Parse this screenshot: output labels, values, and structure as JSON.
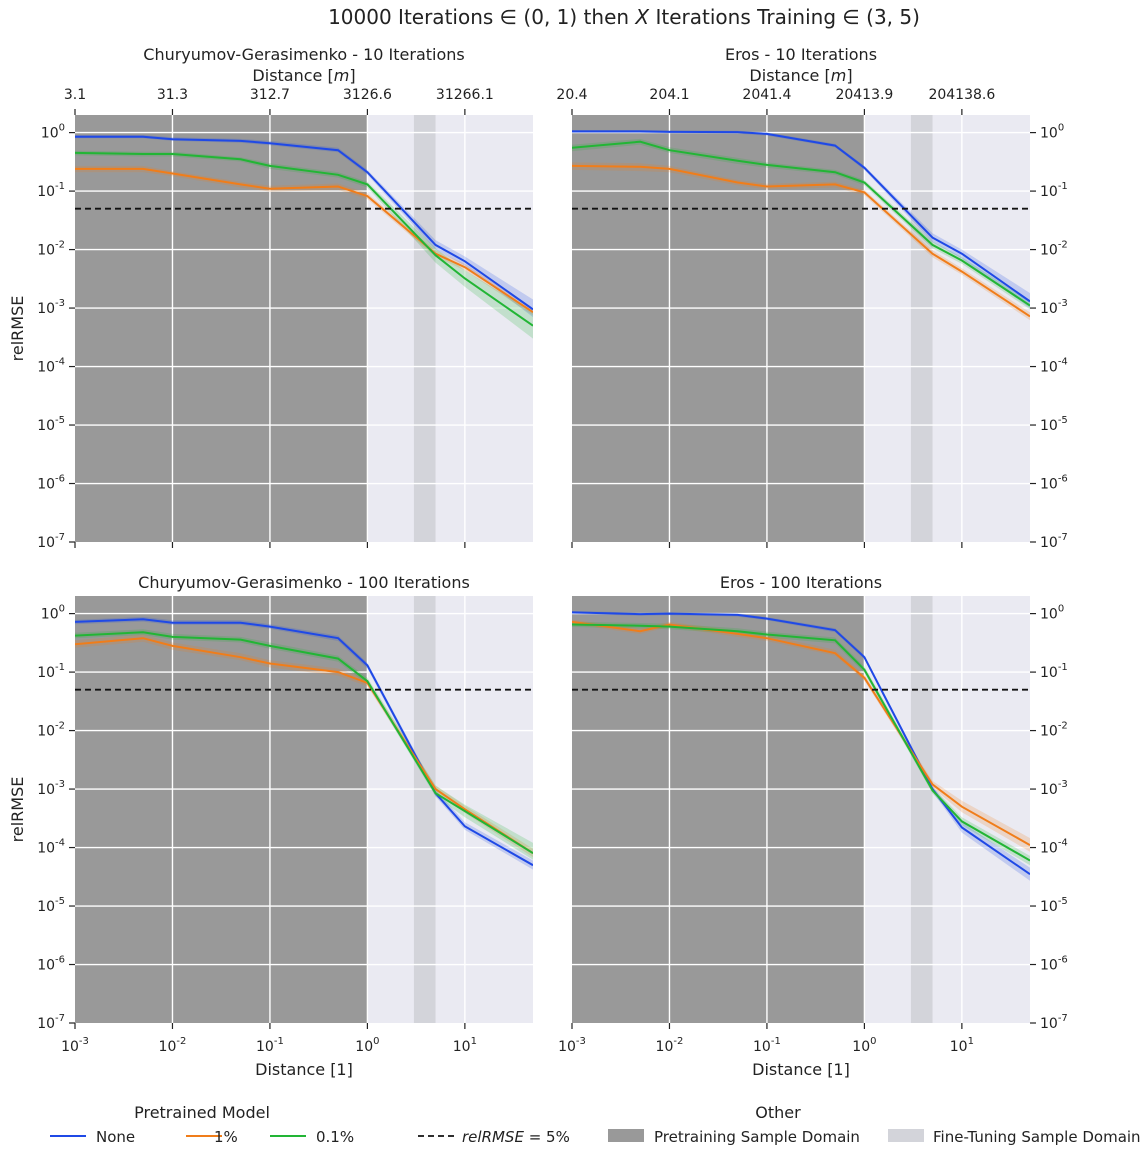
{
  "figure": {
    "title": "10000 Iterations ∈ (0, 1) then X Iterations Training ∈ (3, 5)"
  },
  "colors": {
    "none": "#1f49e6",
    "one_pct": "#f07d1a",
    "point_one_pct": "#22b535",
    "threshold": "#111111",
    "pretraining_domain": "#999999",
    "finetuning_domain": "#d3d4da",
    "plot_background": "#eaeaf2",
    "grid": "#ffffff"
  },
  "legend": {
    "left_title": "Pretrained Model",
    "right_title": "Other",
    "items": [
      {
        "label": "None",
        "kind": "line",
        "color_key": "none"
      },
      {
        "label": "1%",
        "kind": "line",
        "color_key": "one_pct"
      },
      {
        "label": "0.1%",
        "kind": "line",
        "color_key": "point_one_pct"
      },
      {
        "label": "relRMSE = 5%",
        "kind": "dashed",
        "color_key": "threshold"
      },
      {
        "label": "Pretraining Sample Domain",
        "kind": "patch",
        "color_key": "pretraining_domain"
      },
      {
        "label": "Fine-Tuning Sample Domain",
        "kind": "patch",
        "color_key": "finetuning_domain"
      }
    ]
  },
  "chart_data": [
    {
      "type": "line",
      "title": "Churyumov-Gerasimenko - 10 Iterations",
      "secondary_xlabel": "Distance [m]",
      "secondary_ticks": [
        "3.1",
        "31.3",
        "312.7",
        "3126.6",
        "31266.1"
      ],
      "xlabel": "",
      "ylabel": "relRMSE",
      "xscale": "log",
      "yscale": "log",
      "xlim": [
        0.001,
        50
      ],
      "ylim": [
        1e-07,
        2
      ],
      "pretraining_domain": [
        0.001,
        1
      ],
      "finetuning_domain": [
        3,
        5
      ],
      "threshold": 0.05,
      "x": [
        0.001,
        0.005,
        0.01,
        0.05,
        0.1,
        0.5,
        1,
        5,
        10,
        50
      ],
      "series": [
        {
          "name": "None",
          "color_key": "none",
          "values": [
            0.85,
            0.85,
            0.77,
            0.72,
            0.66,
            0.5,
            0.21,
            0.012,
            0.0063,
            0.00095
          ],
          "band": [
            [
              0.8,
              0.91
            ],
            [
              0.8,
              0.91
            ],
            [
              0.72,
              0.83
            ],
            [
              0.67,
              0.78
            ],
            [
              0.61,
              0.72
            ],
            [
              0.46,
              0.55
            ],
            [
              0.19,
              0.23
            ],
            [
              0.01,
              0.0145
            ],
            [
              0.0053,
              0.0076
            ],
            [
              0.0007,
              0.0014
            ]
          ]
        },
        {
          "name": "1%",
          "color_key": "one_pct",
          "values": [
            0.24,
            0.24,
            0.2,
            0.13,
            0.11,
            0.12,
            0.082,
            0.0085,
            0.005,
            0.00085
          ],
          "band": [
            [
              0.21,
              0.27
            ],
            [
              0.21,
              0.27
            ],
            [
              0.18,
              0.22
            ],
            [
              0.115,
              0.145
            ],
            [
              0.098,
              0.123
            ],
            [
              0.105,
              0.135
            ],
            [
              0.073,
              0.092
            ],
            [
              0.0075,
              0.0097
            ],
            [
              0.0044,
              0.0057
            ],
            [
              0.00075,
              0.00097
            ]
          ]
        },
        {
          "name": "0.1%",
          "color_key": "point_one_pct",
          "values": [
            0.45,
            0.43,
            0.43,
            0.35,
            0.27,
            0.19,
            0.13,
            0.008,
            0.0032,
            0.0005
          ],
          "band": [
            [
              0.41,
              0.49
            ],
            [
              0.39,
              0.47
            ],
            [
              0.39,
              0.47
            ],
            [
              0.32,
              0.38
            ],
            [
              0.24,
              0.3
            ],
            [
              0.17,
              0.21
            ],
            [
              0.115,
              0.145
            ],
            [
              0.006,
              0.0105
            ],
            [
              0.0023,
              0.0044
            ],
            [
              0.0003,
              0.00085
            ]
          ]
        }
      ]
    },
    {
      "type": "line",
      "title": "Eros - 10 Iterations",
      "secondary_xlabel": "Distance [m]",
      "secondary_ticks": [
        "20.4",
        "204.1",
        "2041.4",
        "20413.9",
        "204138.6"
      ],
      "xlabel": "",
      "ylabel": "",
      "xscale": "log",
      "yscale": "log",
      "xlim": [
        0.001,
        50
      ],
      "ylim": [
        1e-07,
        2
      ],
      "pretraining_domain": [
        0.001,
        1
      ],
      "finetuning_domain": [
        3,
        5
      ],
      "threshold": 0.05,
      "x": [
        0.001,
        0.005,
        0.01,
        0.05,
        0.1,
        0.5,
        1,
        5,
        10,
        50
      ],
      "series": [
        {
          "name": "None",
          "color_key": "none",
          "values": [
            1.05,
            1.05,
            1.03,
            1.02,
            0.95,
            0.6,
            0.25,
            0.016,
            0.0085,
            0.0013
          ],
          "band": [
            [
              0.99,
              1.11
            ],
            [
              0.99,
              1.11
            ],
            [
              0.97,
              1.09
            ],
            [
              0.96,
              1.08
            ],
            [
              0.89,
              1.01
            ],
            [
              0.56,
              0.64
            ],
            [
              0.23,
              0.27
            ],
            [
              0.0135,
              0.019
            ],
            [
              0.007,
              0.01
            ],
            [
              0.001,
              0.0018
            ]
          ]
        },
        {
          "name": "1%",
          "color_key": "one_pct",
          "values": [
            0.27,
            0.26,
            0.24,
            0.14,
            0.12,
            0.13,
            0.095,
            0.0085,
            0.0042,
            0.00072
          ],
          "band": [
            [
              0.23,
              0.31
            ],
            [
              0.22,
              0.3
            ],
            [
              0.21,
              0.27
            ],
            [
              0.125,
              0.155
            ],
            [
              0.107,
              0.133
            ],
            [
              0.115,
              0.145
            ],
            [
              0.085,
              0.105
            ],
            [
              0.0074,
              0.0097
            ],
            [
              0.0037,
              0.0048
            ],
            [
              0.00062,
              0.00084
            ]
          ]
        },
        {
          "name": "0.1%",
          "color_key": "point_one_pct",
          "values": [
            0.55,
            0.7,
            0.5,
            0.33,
            0.28,
            0.21,
            0.14,
            0.012,
            0.0065,
            0.0011
          ],
          "band": [
            [
              0.48,
              0.62
            ],
            [
              0.62,
              0.78
            ],
            [
              0.45,
              0.56
            ],
            [
              0.29,
              0.37
            ],
            [
              0.25,
              0.31
            ],
            [
              0.19,
              0.23
            ],
            [
              0.125,
              0.155
            ],
            [
              0.0105,
              0.0138
            ],
            [
              0.0057,
              0.0074
            ],
            [
              0.00095,
              0.0013
            ]
          ]
        }
      ]
    },
    {
      "type": "line",
      "title": "Churyumov-Gerasimenko - 100 Iterations",
      "xlabel": "Distance [1]",
      "ylabel": "relRMSE",
      "xscale": "log",
      "yscale": "log",
      "xlim": [
        0.001,
        50
      ],
      "ylim": [
        1e-07,
        2
      ],
      "pretraining_domain": [
        0.001,
        1
      ],
      "finetuning_domain": [
        3,
        5
      ],
      "threshold": 0.05,
      "x": [
        0.001,
        0.005,
        0.01,
        0.05,
        0.1,
        0.5,
        1,
        5,
        10,
        50
      ],
      "series": [
        {
          "name": "None",
          "color_key": "none",
          "values": [
            0.72,
            0.8,
            0.7,
            0.7,
            0.6,
            0.38,
            0.13,
            0.00085,
            0.00023,
            5e-05
          ],
          "band": [
            [
              0.66,
              0.78
            ],
            [
              0.73,
              0.88
            ],
            [
              0.64,
              0.77
            ],
            [
              0.64,
              0.77
            ],
            [
              0.55,
              0.66
            ],
            [
              0.34,
              0.42
            ],
            [
              0.115,
              0.145
            ],
            [
              0.00075,
              0.00097
            ],
            [
              0.0002,
              0.00027
            ],
            [
              4.2e-05,
              6e-05
            ]
          ]
        },
        {
          "name": "1%",
          "color_key": "one_pct",
          "values": [
            0.3,
            0.38,
            0.28,
            0.18,
            0.14,
            0.1,
            0.065,
            0.001,
            0.00045,
            8e-05
          ],
          "band": [
            [
              0.26,
              0.35
            ],
            [
              0.33,
              0.44
            ],
            [
              0.24,
              0.32
            ],
            [
              0.16,
              0.21
            ],
            [
              0.12,
              0.16
            ],
            [
              0.087,
              0.115
            ],
            [
              0.057,
              0.075
            ],
            [
              0.00088,
              0.00115
            ],
            [
              0.00039,
              0.00052
            ],
            [
              6.8e-05,
              9.5e-05
            ]
          ]
        },
        {
          "name": "0.1%",
          "color_key": "point_one_pct",
          "values": [
            0.42,
            0.48,
            0.4,
            0.36,
            0.28,
            0.17,
            0.07,
            0.00085,
            0.00042,
            8e-05
          ],
          "band": [
            [
              0.38,
              0.47
            ],
            [
              0.43,
              0.54
            ],
            [
              0.36,
              0.45
            ],
            [
              0.32,
              0.4
            ],
            [
              0.25,
              0.32
            ],
            [
              0.15,
              0.19
            ],
            [
              0.062,
              0.08
            ],
            [
              0.00075,
              0.00115
            ],
            [
              0.00033,
              0.00054
            ],
            [
              6.2e-05,
              0.00012
            ]
          ]
        }
      ]
    },
    {
      "type": "line",
      "title": "Eros - 100 Iterations",
      "xlabel": "Distance [1]",
      "ylabel": "",
      "xscale": "log",
      "yscale": "log",
      "xlim": [
        0.001,
        50
      ],
      "ylim": [
        1e-07,
        2
      ],
      "pretraining_domain": [
        0.001,
        1
      ],
      "finetuning_domain": [
        3,
        5
      ],
      "threshold": 0.05,
      "x": [
        0.001,
        0.005,
        0.01,
        0.05,
        0.1,
        0.5,
        1,
        5,
        10,
        50
      ],
      "series": [
        {
          "name": "None",
          "color_key": "none",
          "values": [
            1.05,
            0.98,
            1.0,
            0.95,
            0.82,
            0.52,
            0.18,
            0.001,
            0.00022,
            3.5e-05
          ],
          "band": [
            [
              0.99,
              1.11
            ],
            [
              0.92,
              1.04
            ],
            [
              0.94,
              1.06
            ],
            [
              0.89,
              1.01
            ],
            [
              0.77,
              0.87
            ],
            [
              0.48,
              0.56
            ],
            [
              0.165,
              0.195
            ],
            [
              0.0009,
              0.00112
            ],
            [
              0.00018,
              0.00027
            ],
            [
              2.7e-05,
              4.5e-05
            ]
          ]
        },
        {
          "name": "1%",
          "color_key": "one_pct",
          "values": [
            0.72,
            0.5,
            0.65,
            0.45,
            0.38,
            0.21,
            0.08,
            0.0012,
            0.0005,
            0.00011
          ],
          "band": [
            [
              0.66,
              0.79
            ],
            [
              0.45,
              0.56
            ],
            [
              0.59,
              0.72
            ],
            [
              0.4,
              0.51
            ],
            [
              0.34,
              0.43
            ],
            [
              0.19,
              0.24
            ],
            [
              0.071,
              0.09
            ],
            [
              0.00105,
              0.00138
            ],
            [
              0.0004,
              0.00063
            ],
            [
              8.5e-05,
              0.000145
            ]
          ]
        },
        {
          "name": "0.1%",
          "color_key": "point_one_pct",
          "values": [
            0.65,
            0.62,
            0.6,
            0.5,
            0.44,
            0.35,
            0.11,
            0.00095,
            0.00028,
            6e-05
          ],
          "band": [
            [
              0.59,
              0.72
            ],
            [
              0.56,
              0.69
            ],
            [
              0.54,
              0.67
            ],
            [
              0.45,
              0.56
            ],
            [
              0.39,
              0.49
            ],
            [
              0.31,
              0.39
            ],
            [
              0.097,
              0.125
            ],
            [
              0.00084,
              0.00108
            ],
            [
              0.00024,
              0.00033
            ],
            [
              5e-05,
              7.2e-05
            ]
          ]
        }
      ]
    }
  ]
}
